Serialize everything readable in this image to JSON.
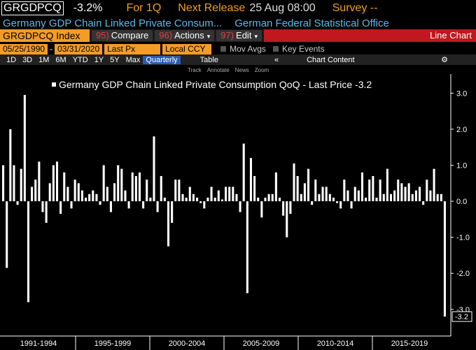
{
  "header": {
    "ticker": "GRGDPCQ",
    "change": "-3.2%",
    "period": "For 1Q",
    "release_label": "Next Release",
    "release_time": "25 Aug 08:00",
    "survey": "Survey --"
  },
  "subheader": {
    "name": "Germany GDP Chain Linked Private Consum...",
    "source": "German Federal Statistical Office"
  },
  "toolbar": {
    "security": "GRGDPCQ Index",
    "buttons": [
      {
        "num": "95)",
        "label": "Compare"
      },
      {
        "num": "96)",
        "label": "Actions"
      },
      {
        "num": "97)",
        "label": "Edit"
      }
    ],
    "view": "Line Chart"
  },
  "range": {
    "start": "05/25/1990",
    "sep": "-",
    "end": "03/31/2020",
    "field": "Last Px",
    "currency": "Local CCY",
    "options": [
      "Mov Avgs",
      "Key Events"
    ]
  },
  "periods": [
    "1D",
    "3D",
    "1M",
    "6M",
    "YTD",
    "1Y",
    "5Y",
    "Max"
  ],
  "frequency": "Quarterly",
  "table": "Table",
  "content": "Chart Content",
  "tools": [
    "Track",
    "Annotate",
    "News",
    "Zoom"
  ],
  "chart_data": {
    "type": "bar",
    "title": "Germany GDP Chain Linked Private Consumption QoQ - Last Price -3.2",
    "color": "#ffffff",
    "values": [
      1.0,
      -1.85,
      2.0,
      1.0,
      -0.1,
      0.9,
      2.95,
      -2.8,
      0.4,
      0.6,
      1.1,
      -0.3,
      -0.6,
      0.5,
      1.0,
      1.1,
      -0.35,
      0.8,
      0.4,
      -0.2,
      0.6,
      0.5,
      0.3,
      0.1,
      0.2,
      0.3,
      0.2,
      -0.1,
      1.0,
      0.4,
      -0.3,
      0.5,
      1.0,
      0.9,
      0.3,
      -0.2,
      0.8,
      0.7,
      0.8,
      -0.2,
      0.6,
      0.1,
      1.8,
      -0.3,
      0.7,
      0.1,
      -1.25,
      -0.6,
      0.6,
      0.6,
      0.2,
      0.1,
      0.4,
      0.2,
      0.1,
      -0.05,
      -0.2,
      0.1,
      0.4,
      0.1,
      0.3,
      0.05,
      0.4,
      0.4,
      0.4,
      0.2,
      -0.3,
      1.6,
      -2.55,
      1.2,
      0.7,
      0.1,
      -0.45,
      0.1,
      0.2,
      0.2,
      0.8,
      0.1,
      -0.4,
      -1.0,
      -0.35,
      1.05,
      0.7,
      0.2,
      0.5,
      0.9,
      -0.1,
      0.6,
      0.2,
      0.4,
      0.4,
      0.2,
      0.1,
      -0.05,
      -0.2,
      0.6,
      0.3,
      -0.2,
      0.4,
      0.3,
      0.8,
      0.1,
      0.6,
      0.7,
      0.1,
      0.6,
      0.2,
      0.9,
      0.2,
      0.3,
      0.6,
      0.5,
      0.4,
      0.5,
      0.2,
      0.3,
      0.4,
      -0.1,
      0.6,
      0.3,
      0.9,
      0.2,
      0.2,
      -3.2
    ],
    "x_labels": [
      "1991-1994",
      "1995-1999",
      "2000-2004",
      "2005-2009",
      "2010-2014",
      "2015-2019"
    ],
    "ylim": [
      -3.74,
      3.53
    ],
    "yticks": [
      {
        "value": 3,
        "label": "3.0"
      },
      {
        "value": 2,
        "label": "2.0"
      },
      {
        "value": 1,
        "label": "1.0"
      },
      {
        "value": 0,
        "label": "0.0"
      },
      {
        "value": -1,
        "label": "-1.0"
      },
      {
        "value": -2,
        "label": "-2.0"
      },
      {
        "value": -3,
        "label": "-3.0"
      }
    ]
  }
}
